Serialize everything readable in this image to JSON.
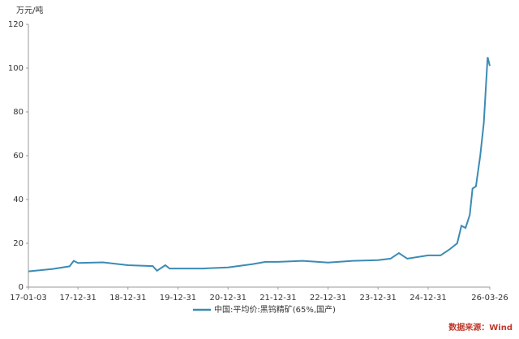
{
  "chart_data": {
    "type": "line",
    "y_unit": "万元/吨",
    "x": [
      "17-01-03",
      "17-06-30",
      "17-10-31",
      "17-11-30",
      "17-12-31",
      "18-06-30",
      "18-12-31",
      "19-06-30",
      "19-07-31",
      "19-09-30",
      "19-10-31",
      "20-06-30",
      "20-12-31",
      "21-06-30",
      "21-09-30",
      "21-12-31",
      "22-06-30",
      "22-12-31",
      "23-06-30",
      "23-12-31",
      "24-03-31",
      "24-05-31",
      "24-07-31",
      "24-12-31",
      "25-03-31",
      "25-05-31",
      "25-07-31",
      "25-08-31",
      "25-09-30",
      "25-10-31",
      "25-11-20",
      "25-12-15",
      "26-01-15",
      "26-02-10",
      "26-03-10",
      "26-03-26"
    ],
    "series": [
      {
        "name": "中国:平均价:黑钨精矿(65%,国产)",
        "color": "#3b8bb5",
        "values": [
          7.2,
          8.3,
          9.5,
          12,
          11,
          11.3,
          10,
          9.6,
          7.5,
          10,
          8.5,
          8.5,
          9,
          10.5,
          11.5,
          11.5,
          12,
          11.2,
          12,
          12.3,
          13,
          15.5,
          13,
          14.5,
          14.5,
          17,
          20,
          28,
          27,
          33,
          45,
          46,
          60,
          75,
          105,
          101
        ]
      }
    ],
    "xlim": [
      "17-01-03",
      "26-03-26"
    ],
    "xticks": [
      "17-01-03",
      "17-12-31",
      "18-12-31",
      "19-12-31",
      "20-12-31",
      "21-12-31",
      "22-12-31",
      "23-12-31",
      "24-12-31",
      "26-03-26"
    ],
    "ylim": [
      0,
      120
    ],
    "yticks": [
      0,
      20,
      40,
      60,
      80,
      100,
      120
    ],
    "source": "数据来源：Wind"
  }
}
